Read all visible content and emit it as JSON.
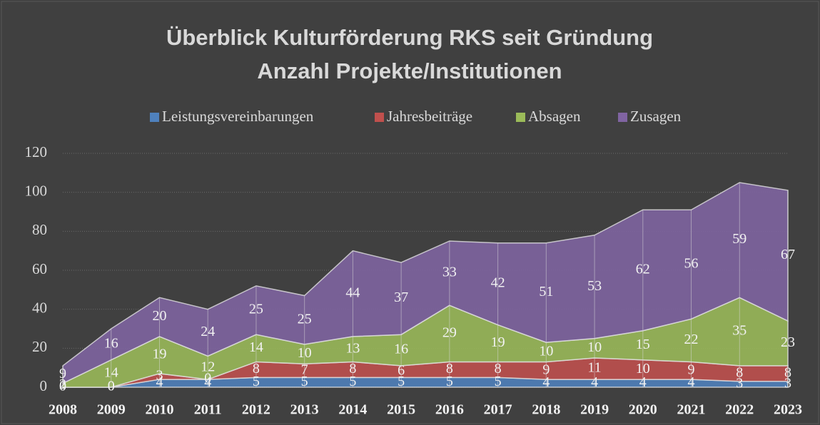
{
  "chart_data": {
    "type": "stacked_area",
    "title": [
      "Überblick Kulturförderung RKS seit Gründung",
      "Anzahl Projekte/Institutionen"
    ],
    "categories": [
      "2008",
      "2009",
      "2010",
      "2011",
      "2012",
      "2013",
      "2014",
      "2015",
      "2016",
      "2017",
      "2018",
      "2019",
      "2020",
      "2021",
      "2022",
      "2023"
    ],
    "series": [
      {
        "name": "Leistungsvereinbarungen",
        "color": "#4f81bd",
        "values": [
          0,
          0,
          4,
          4,
          5,
          5,
          5,
          5,
          5,
          5,
          4,
          4,
          4,
          4,
          3,
          3
        ]
      },
      {
        "name": "Jahresbeiträge",
        "color": "#c0504d",
        "values": [
          0,
          0,
          3,
          0,
          8,
          7,
          8,
          6,
          8,
          8,
          9,
          11,
          10,
          9,
          8,
          8
        ]
      },
      {
        "name": "Absagen",
        "color": "#9bbb59",
        "values": [
          2,
          14,
          19,
          12,
          14,
          10,
          13,
          16,
          29,
          19,
          10,
          10,
          15,
          22,
          35,
          23
        ]
      },
      {
        "name": "Zusagen",
        "color": "#8064a2",
        "values": [
          9,
          16,
          20,
          24,
          25,
          25,
          44,
          37,
          33,
          42,
          51,
          53,
          62,
          56,
          59,
          67
        ]
      }
    ],
    "ylim": [
      0,
      120
    ],
    "yticks": [
      0,
      20,
      40,
      60,
      80,
      100,
      120
    ],
    "grid": true,
    "legend": "top"
  }
}
